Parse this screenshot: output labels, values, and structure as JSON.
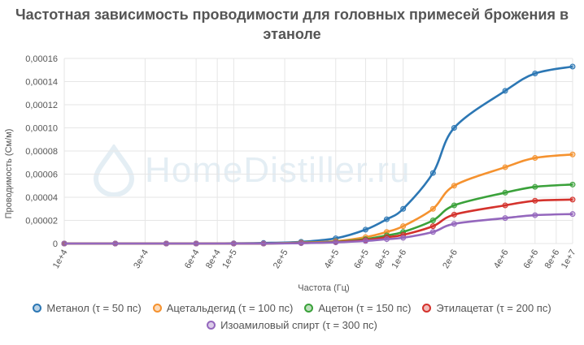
{
  "chart_data": {
    "type": "line",
    "title_lines": [
      "Частотная зависимость проводимости для головных примесей брожения в",
      "этаноле"
    ],
    "xlabel": "Частота (Гц)",
    "ylabel": "Проводимость (См/м)",
    "x_scale": "log",
    "xlim": [
      10000,
      10000000
    ],
    "ylim": [
      0,
      0.00016
    ],
    "grid": true,
    "legend_position": "bottom",
    "x_ticks": [
      10000,
      30000,
      60000,
      80000,
      100000,
      200000,
      400000,
      600000,
      800000,
      1000000,
      2000000,
      4000000,
      6000000,
      8000000,
      10000000
    ],
    "x_tick_labels": [
      "1e+4",
      "3e+4",
      "6e+4",
      "8e+4",
      "1e+5",
      "2e+5",
      "4e+5",
      "6e+5",
      "8e+5",
      "1e+6",
      "2e+6",
      "4e+6",
      "6e+6",
      "8e+6",
      "1e+7"
    ],
    "y_ticks": [
      0,
      2e-05,
      4e-05,
      6e-05,
      8e-05,
      0.0001,
      0.00012,
      0.00014,
      0.00016
    ],
    "y_tick_labels": [
      "0",
      "0,00002",
      "0,00004",
      "0,00006",
      "0,00008",
      "0,00010",
      "0,00012",
      "0,00014",
      "0,00016"
    ],
    "x": [
      10000,
      20000,
      40000,
      60000,
      100000,
      150000,
      250000,
      400000,
      600000,
      800000,
      1000000,
      1500000,
      2000000,
      2500000,
      4000000,
      6000000,
      10000000
    ],
    "series": [
      {
        "name": "Метанол (τ = 50 пс)",
        "color": "#2c77b4",
        "values": [
          0,
          0,
          0,
          0,
          2e-07,
          5e-07,
          1.5e-06,
          4.5e-06,
          1.2e-05,
          2.1e-05,
          3e-05,
          6.1e-05,
          0.0001,
          null,
          0.000132,
          0.000147,
          0.000153
        ]
      },
      {
        "name": "Ацетальдегид (τ = 100 пс)",
        "color": "#f5922f",
        "values": [
          0,
          0,
          0,
          0,
          0,
          0,
          8e-07,
          2e-06,
          5.5e-06,
          1e-05,
          1.5e-05,
          3e-05,
          5e-05,
          null,
          6.6e-05,
          7.4e-05,
          7.7e-05
        ]
      },
      {
        "name": "Ацетон (τ = 150 пс)",
        "color": "#3aa13a",
        "values": [
          0,
          0,
          0,
          0,
          0,
          0,
          5e-07,
          1.5e-06,
          3.8e-06,
          7e-06,
          1e-05,
          2e-05,
          3.3e-05,
          null,
          4.4e-05,
          4.9e-05,
          5.1e-05
        ]
      },
      {
        "name": "Этилацетат (τ = 200 пс)",
        "color": "#d4322c",
        "values": [
          0,
          0,
          0,
          0,
          0,
          0,
          4e-07,
          1.2e-06,
          3e-06,
          5.5e-06,
          7.5e-06,
          1.5e-05,
          2.5e-05,
          null,
          3.3e-05,
          3.7e-05,
          3.8e-05
        ]
      },
      {
        "name": "Изоамиловый спирт (τ = 300 пс)",
        "color": "#9467bd",
        "values": [
          0,
          0,
          0,
          0,
          0,
          0,
          3e-07,
          1e-06,
          2.2e-06,
          3.8e-06,
          5e-06,
          1e-05,
          1.7e-05,
          null,
          2.2e-05,
          2.45e-05,
          2.55e-05
        ]
      }
    ],
    "legend_rows": [
      [
        0,
        1,
        2,
        3
      ],
      [
        4
      ]
    ]
  },
  "watermark": {
    "text": "HomeDistiller.ru"
  }
}
